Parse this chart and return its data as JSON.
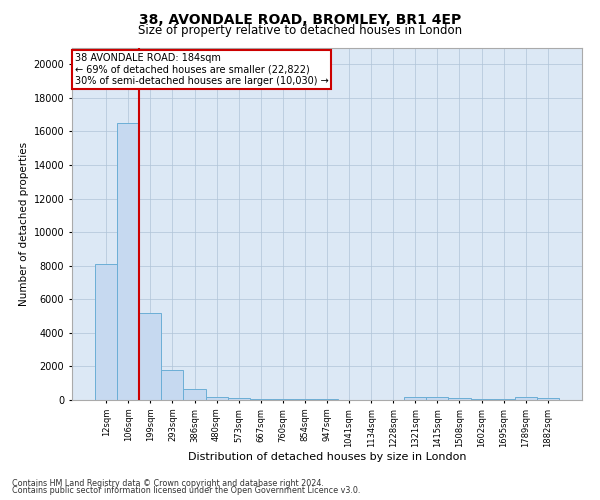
{
  "title": "38, AVONDALE ROAD, BROMLEY, BR1 4EP",
  "subtitle": "Size of property relative to detached houses in London",
  "xlabel": "Distribution of detached houses by size in London",
  "ylabel": "Number of detached properties",
  "annotation_text_line1": "38 AVONDALE ROAD: 184sqm",
  "annotation_text_line2": "← 69% of detached houses are smaller (22,822)",
  "annotation_text_line3": "30% of semi-detached houses are larger (10,030) →",
  "bar_color": "#c6d9f0",
  "bar_edge_color": "#6baed6",
  "vline_color": "#cc0000",
  "box_edge_color": "#cc0000",
  "background_color": "#ffffff",
  "plot_bg_color": "#dce8f5",
  "grid_color": "#b0c4d8",
  "footer_line1": "Contains HM Land Registry data © Crown copyright and database right 2024.",
  "footer_line2": "Contains public sector information licensed under the Open Government Licence v3.0.",
  "categories": [
    "12sqm",
    "106sqm",
    "199sqm",
    "293sqm",
    "386sqm",
    "480sqm",
    "573sqm",
    "667sqm",
    "760sqm",
    "854sqm",
    "947sqm",
    "1041sqm",
    "1134sqm",
    "1228sqm",
    "1321sqm",
    "1415sqm",
    "1508sqm",
    "1602sqm",
    "1695sqm",
    "1789sqm",
    "1882sqm"
  ],
  "values": [
    8100,
    16500,
    5200,
    1800,
    650,
    200,
    110,
    70,
    50,
    40,
    30,
    20,
    15,
    12,
    200,
    160,
    110,
    65,
    35,
    160,
    105
  ],
  "ylim": [
    0,
    21000
  ],
  "yticks": [
    0,
    2000,
    4000,
    6000,
    8000,
    10000,
    12000,
    14000,
    16000,
    18000,
    20000
  ],
  "vline_x": 1.5
}
